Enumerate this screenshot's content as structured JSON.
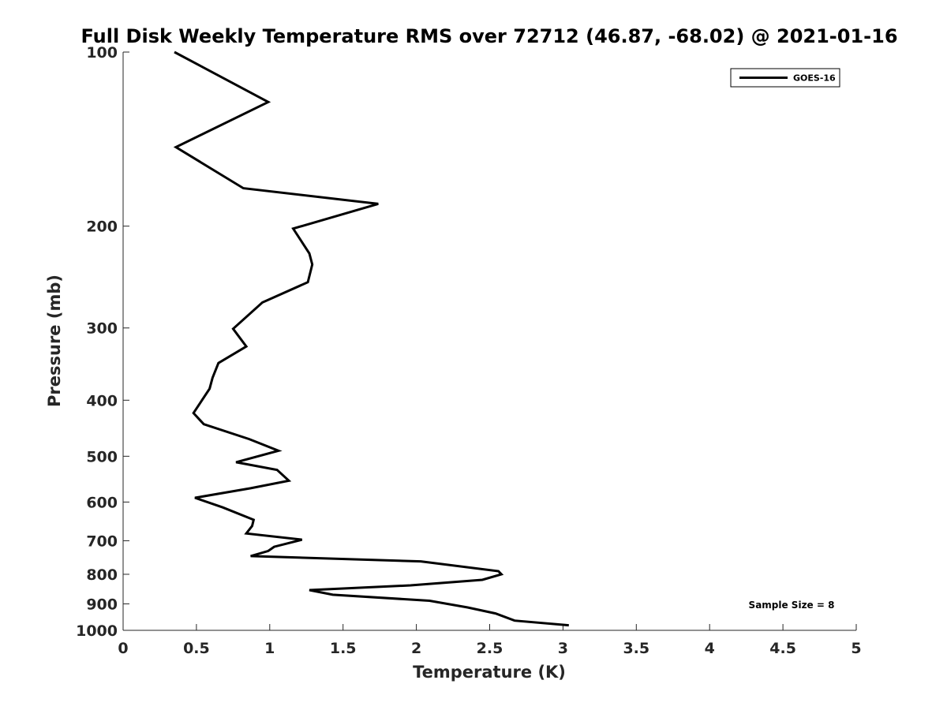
{
  "chart_data": {
    "type": "line",
    "title": "Full Disk Weekly Temperature RMS over 72712 (46.87, -68.02) @ 2021-01-16",
    "xlabel": "Temperature (K)",
    "ylabel": "Pressure (mb)",
    "xlim": [
      0,
      5
    ],
    "ylim": [
      100,
      1000
    ],
    "yscale": "log",
    "yreversed": true,
    "grid": false,
    "legend_position": "top-right",
    "xticks": [
      "0",
      "0.5",
      "1",
      "1.5",
      "2",
      "2.5",
      "3",
      "3.5",
      "4",
      "4.5",
      "5"
    ],
    "xtick_values": [
      0,
      0.5,
      1,
      1.5,
      2,
      2.5,
      3,
      3.5,
      4,
      4.5,
      5
    ],
    "yticks": [
      "100",
      "200",
      "300",
      "400",
      "500",
      "600",
      "700",
      "800",
      "900",
      "1000"
    ],
    "ytick_values": [
      100,
      200,
      300,
      400,
      500,
      600,
      700,
      800,
      900,
      1000
    ],
    "annotation": "Sample Size = 8",
    "series": [
      {
        "name": "GOES-16",
        "color": "#000000",
        "x": [
          0.35,
          0.99,
          0.36,
          0.82,
          1.74,
          1.16,
          1.27,
          1.29,
          1.26,
          0.95,
          0.75,
          0.84,
          0.65,
          0.61,
          0.59,
          0.48,
          0.55,
          0.86,
          1.06,
          0.77,
          1.05,
          1.13,
          0.87,
          0.49,
          0.68,
          0.89,
          0.88,
          0.84,
          1.22,
          1.03,
          0.99,
          0.87,
          2.03,
          2.56,
          2.58,
          2.45,
          1.96,
          1.27,
          1.43,
          2.09,
          2.35,
          2.54,
          2.67,
          3.04
        ],
        "y": [
          100,
          122,
          146,
          172,
          183,
          202,
          223,
          233,
          250,
          271,
          301,
          323,
          345,
          366,
          382,
          421,
          440,
          467,
          489,
          512,
          528,
          551,
          568,
          590,
          613,
          644,
          660,
          680,
          697,
          717,
          729,
          744,
          760,
          790,
          800,
          818,
          836,
          852,
          868,
          889,
          913,
          935,
          962,
          980
        ]
      }
    ]
  }
}
